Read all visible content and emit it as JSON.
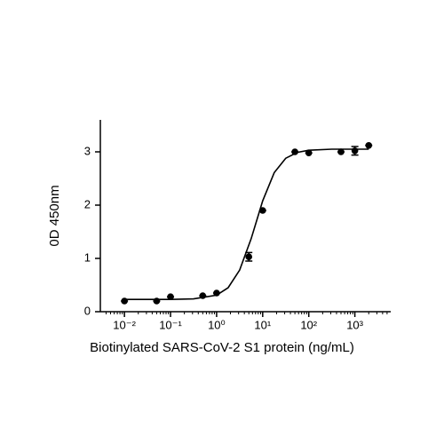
{
  "chart_data": {
    "type": "scatter",
    "x_label": "Biotinylated SARS-CoV-2 S1 protein (ng/mL)",
    "y_label": "0D 450nm",
    "x_scale": "log",
    "color": "#000000",
    "x": [
      0.01,
      0.05,
      0.1,
      0.5,
      1,
      5,
      10,
      50,
      100,
      500,
      1000,
      2000
    ],
    "values": [
      0.2,
      0.2,
      0.28,
      0.3,
      0.35,
      1.03,
      1.9,
      3.0,
      2.98,
      3.0,
      3.02,
      3.12
    ],
    "errors": [
      0,
      0,
      0,
      0,
      0,
      0.08,
      0,
      0,
      0,
      0,
      0.08,
      0
    ],
    "curve": {
      "x": [
        0.01,
        0.1,
        0.316,
        1,
        1.78,
        3.16,
        5.62,
        10,
        17.8,
        31.6,
        56.2,
        100,
        316,
        2000
      ],
      "y": [
        0.23,
        0.23,
        0.24,
        0.31,
        0.45,
        0.78,
        1.37,
        2.08,
        2.61,
        2.88,
        2.99,
        3.03,
        3.05,
        3.05
      ]
    },
    "xlim": [
      0.003,
      6000
    ],
    "ylim": [
      0,
      3.6
    ],
    "xticks": [
      {
        "value": 0.01,
        "label": "10⁻²"
      },
      {
        "value": 0.1,
        "label": "10⁻¹"
      },
      {
        "value": 1,
        "label": "10⁰"
      },
      {
        "value": 10,
        "label": "10¹"
      },
      {
        "value": 100,
        "label": "10²"
      },
      {
        "value": 1000,
        "label": "10³"
      }
    ],
    "xminorticks": [
      0.004,
      0.005,
      0.006,
      0.007,
      0.008,
      0.009,
      0.02,
      0.03,
      0.04,
      0.05,
      0.06,
      0.07,
      0.08,
      0.09,
      0.2,
      0.3,
      0.4,
      0.5,
      0.6,
      0.7,
      0.8,
      0.9,
      2,
      3,
      4,
      5,
      6,
      7,
      8,
      9,
      20,
      30,
      40,
      50,
      60,
      70,
      80,
      90,
      200,
      300,
      400,
      500,
      600,
      700,
      800,
      900,
      2000,
      3000,
      4000,
      5000
    ],
    "yticks": [
      0,
      1,
      2,
      3
    ]
  }
}
